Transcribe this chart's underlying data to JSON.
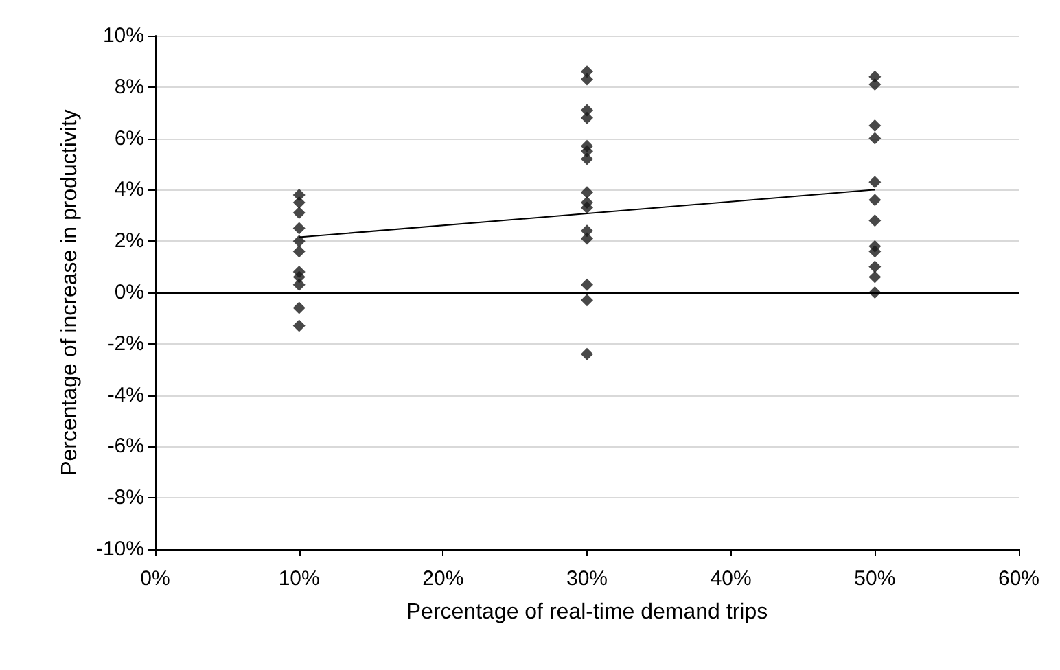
{
  "chart_data": {
    "type": "scatter",
    "xlabel": "Percentage of real-time demand trips",
    "ylabel": "Percentage of increase in productivity",
    "xlim": [
      0,
      60
    ],
    "xticks": [
      {
        "value": 0,
        "label": "0%"
      },
      {
        "value": 10,
        "label": "10%"
      },
      {
        "value": 20,
        "label": "20%"
      },
      {
        "value": 30,
        "label": "30%"
      },
      {
        "value": 40,
        "label": "40%"
      },
      {
        "value": 50,
        "label": "50%"
      },
      {
        "value": 60,
        "label": "60%"
      }
    ],
    "ylim": [
      -10,
      10
    ],
    "yticks": [
      {
        "value": -10,
        "label": "-10%"
      },
      {
        "value": -8,
        "label": "-8%"
      },
      {
        "value": -6,
        "label": "-6%"
      },
      {
        "value": -4,
        "label": "-4%"
      },
      {
        "value": -2,
        "label": "-2%"
      },
      {
        "value": 0,
        "label": "0%"
      },
      {
        "value": 2,
        "label": "2%"
      },
      {
        "value": 4,
        "label": "4%"
      },
      {
        "value": 6,
        "label": "6%"
      },
      {
        "value": 8,
        "label": "8%"
      },
      {
        "value": 10,
        "label": "10%"
      }
    ],
    "grid": "y",
    "marker": "diamond",
    "ref_lines": [
      {
        "axis": "y",
        "value": 0,
        "color": "#000000"
      }
    ],
    "series": [
      {
        "color": "#1a1a1a",
        "x": [
          10,
          10,
          10,
          10,
          10,
          10,
          10,
          10,
          10,
          10,
          10,
          30,
          30,
          30,
          30,
          30,
          30,
          30,
          30,
          30,
          30,
          30,
          30,
          30,
          30,
          30,
          50,
          50,
          50,
          50,
          50,
          50,
          50,
          50,
          50,
          50,
          50,
          50
        ],
        "values": [
          3.8,
          3.5,
          3.1,
          2.5,
          2.0,
          1.6,
          0.8,
          0.6,
          0.3,
          -0.6,
          -1.3,
          8.6,
          8.3,
          7.1,
          6.8,
          5.7,
          5.5,
          5.2,
          3.9,
          3.5,
          3.3,
          2.4,
          2.1,
          0.3,
          -0.3,
          -2.4,
          8.4,
          8.1,
          6.5,
          6.0,
          4.3,
          3.6,
          2.8,
          1.8,
          1.6,
          1.0,
          0.6,
          0.0
        ]
      },
      {
        "type": "line",
        "color": "#000000",
        "marker": "none",
        "x": [
          10,
          50
        ],
        "values": [
          2.15,
          4.0
        ]
      }
    ]
  }
}
